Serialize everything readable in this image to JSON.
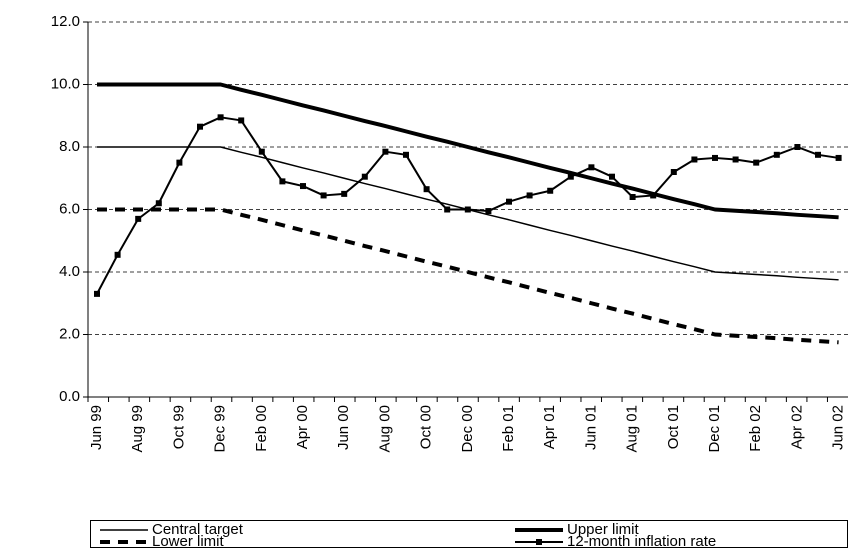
{
  "chart_data": {
    "type": "line",
    "categories": [
      "Jun 99",
      null,
      "Aug 99",
      null,
      "Oct 99",
      null,
      "Dec 99",
      null,
      "Feb 00",
      null,
      "Apr 00",
      null,
      "Jun 00",
      null,
      "Aug 00",
      null,
      "Oct 00",
      null,
      "Dec 00",
      null,
      "Feb 01",
      null,
      "Apr 01",
      null,
      "Jun 01",
      null,
      "Aug 01",
      null,
      "Oct 01",
      null,
      "Dec 01",
      null,
      "Feb 02",
      null,
      "Apr 02",
      null,
      "Jun 02"
    ],
    "series": [
      {
        "name": "Central target",
        "color": "#000000",
        "width": 1.5,
        "dash": null,
        "marker": false,
        "values": [
          8,
          8,
          8,
          8,
          8,
          8,
          8,
          7.83,
          7.67,
          7.5,
          7.33,
          7.17,
          7,
          6.83,
          6.67,
          6.5,
          6.33,
          6.17,
          6,
          5.83,
          5.67,
          5.5,
          5.33,
          5.17,
          5,
          4.83,
          4.67,
          4.5,
          4.33,
          4.17,
          4,
          3.96,
          3.92,
          3.88,
          3.83,
          3.79,
          3.75
        ]
      },
      {
        "name": "Upper limit",
        "color": "#000000",
        "width": 4,
        "dash": null,
        "marker": false,
        "values": [
          10,
          10,
          10,
          10,
          10,
          10,
          10,
          9.83,
          9.67,
          9.5,
          9.33,
          9.17,
          9,
          8.83,
          8.67,
          8.5,
          8.33,
          8.17,
          8,
          7.83,
          7.67,
          7.5,
          7.33,
          7.17,
          7,
          6.83,
          6.67,
          6.5,
          6.33,
          6.17,
          6,
          5.96,
          5.92,
          5.88,
          5.83,
          5.79,
          5.75
        ]
      },
      {
        "name": "Lower limit",
        "color": "#000000",
        "width": 4,
        "dash": "10 8",
        "marker": false,
        "values": [
          6,
          6,
          6,
          6,
          6,
          6,
          6,
          5.83,
          5.67,
          5.5,
          5.33,
          5.17,
          5,
          4.83,
          4.67,
          4.5,
          4.33,
          4.17,
          4,
          3.83,
          3.67,
          3.5,
          3.33,
          3.17,
          3,
          2.83,
          2.67,
          2.5,
          2.33,
          2.17,
          2,
          1.96,
          1.92,
          1.88,
          1.83,
          1.79,
          1.75
        ]
      },
      {
        "name": "12-month inflation rate",
        "color": "#000000",
        "width": 2,
        "dash": null,
        "marker": true,
        "values": [
          3.3,
          4.55,
          5.7,
          6.2,
          7.5,
          8.65,
          8.95,
          8.85,
          7.85,
          6.9,
          6.75,
          6.45,
          6.5,
          7.05,
          7.85,
          7.75,
          6.65,
          6.0,
          6.0,
          5.95,
          6.25,
          6.45,
          6.6,
          7.05,
          7.35,
          7.05,
          6.4,
          6.45,
          7.2,
          7.6,
          7.65,
          7.6,
          7.5,
          7.75,
          8.0,
          7.75,
          7.65
        ]
      }
    ],
    "ylim": [
      0,
      12
    ],
    "yticks": [
      {
        "value": 0,
        "label": "0.0"
      },
      {
        "value": 2,
        "label": "2.0"
      },
      {
        "value": 4,
        "label": "4.0"
      },
      {
        "value": 6,
        "label": "6.0"
      },
      {
        "value": 8,
        "label": "8.0"
      },
      {
        "value": 10,
        "label": "10.0"
      },
      {
        "value": 12,
        "label": "12.0"
      }
    ],
    "grid": true
  }
}
